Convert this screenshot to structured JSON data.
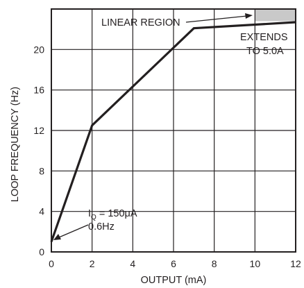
{
  "chart_data": {
    "type": "line",
    "xlabel": "OUTPUT (mA)",
    "ylabel": "LOOP FREQUENCY (Hz)",
    "xlim": [
      0,
      12
    ],
    "ylim": [
      0,
      24
    ],
    "xticks": [
      0,
      2,
      4,
      6,
      8,
      10,
      12
    ],
    "yticks": [
      0,
      4,
      8,
      12,
      16,
      20
    ],
    "x_tick_labels": [
      "0",
      "2",
      "4",
      "6",
      "8",
      "10",
      "12"
    ],
    "y_tick_labels": [
      "0",
      "4",
      "8",
      "12",
      "16",
      "20"
    ],
    "grid": true,
    "series": [
      {
        "x": [
          0,
          2,
          7,
          12
        ],
        "y": [
          1.0,
          12.5,
          22.1,
          22.7
        ]
      }
    ],
    "shaded_region": {
      "x": [
        10,
        12
      ],
      "y": [
        22.8,
        24
      ],
      "color": "#c9c9c9"
    },
    "annotations": {
      "linear_region": "LINEAR REGION",
      "extends_line1": "EXTENDS",
      "extends_line2": "TO 5.0A",
      "iq_prefix": "I",
      "iq_subscript": "Q",
      "iq_value": " = 150μA",
      "iq_freq": "0.6Hz"
    }
  }
}
